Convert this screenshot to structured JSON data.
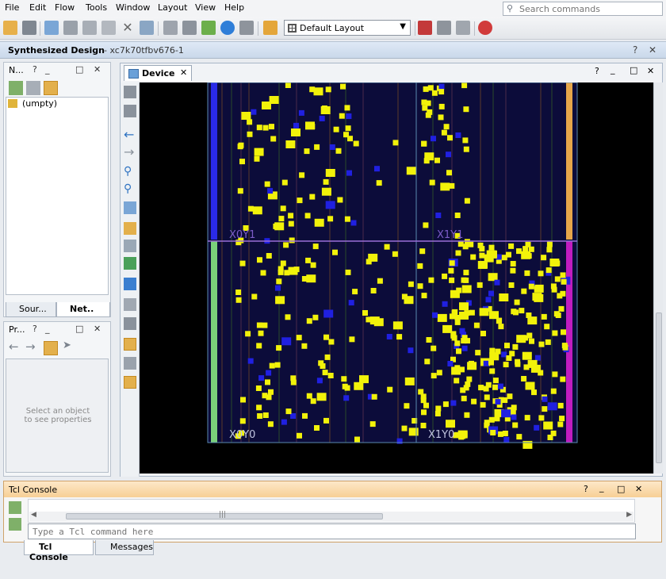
{
  "menu": [
    "File",
    "Edit",
    "Flow",
    "Tools",
    "Window",
    "Layout",
    "View",
    "Help"
  ],
  "search": {
    "placeholder": "Search commands"
  },
  "toolbar": {
    "layout_value": "Default Layout"
  },
  "header": {
    "title": "Synthesized Design",
    "part": "- xc7k70tfbv676-1"
  },
  "netlist_panel": {
    "title": "N...",
    "tree_item": "(umpty)"
  },
  "left_tabs": {
    "sources": "Sour...",
    "netlist": "Net.."
  },
  "properties_panel": {
    "title": "Pr...",
    "hint_line1": "Select an object",
    "hint_line2": "to see properties"
  },
  "device": {
    "tab_label": "Device",
    "clock_regions": [
      "X0Y1",
      "X1Y1",
      "X0Y0",
      "X1Y0"
    ]
  },
  "tcl": {
    "title": "Tcl Console",
    "input_placeholder": "Type a Tcl command here",
    "scroll_grip": "|||"
  },
  "bottom_tabs": {
    "tcl": "Tcl Console",
    "messages": "Messages"
  },
  "colors": {
    "accent": "#f7cf95",
    "cell": "#f2f20a",
    "net": "#2020e0",
    "header": "#c9d8ea"
  }
}
